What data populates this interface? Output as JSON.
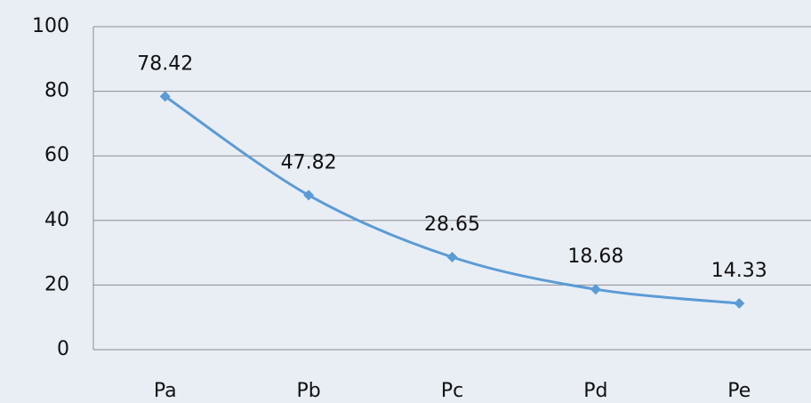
{
  "chart_data": {
    "type": "line",
    "categories": [
      "Pa",
      "Pb",
      "Pc",
      "Pd",
      "Pe"
    ],
    "series": [
      {
        "color": "#5b9bd5",
        "values": [
          78.42,
          47.82,
          28.65,
          18.68,
          14.33
        ]
      }
    ],
    "ylim": [
      0,
      100
    ],
    "yticks": [
      0,
      20,
      40,
      60,
      80,
      100
    ],
    "grid": true
  }
}
